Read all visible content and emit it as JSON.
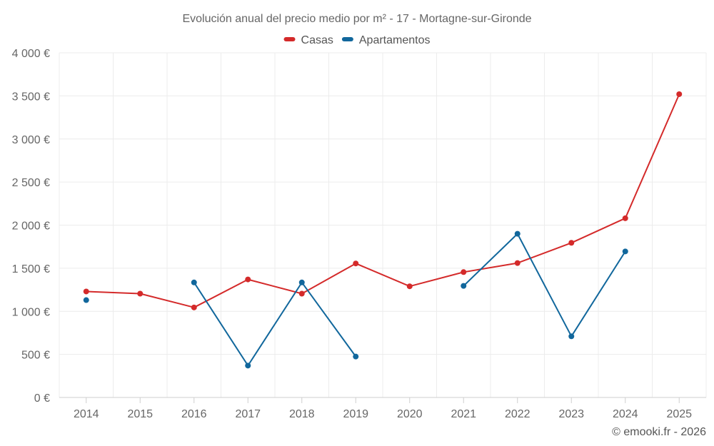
{
  "chart_data": {
    "type": "line",
    "title": "Evolución anual del precio medio por m² - 17 - Mortagne-sur-Gironde",
    "categories": [
      "2014",
      "2015",
      "2016",
      "2017",
      "2018",
      "2019",
      "2020",
      "2021",
      "2022",
      "2023",
      "2024",
      "2025"
    ],
    "ylim": [
      0,
      4000
    ],
    "yticks": [
      0,
      500,
      1000,
      1500,
      2000,
      2500,
      3000,
      3500,
      4000
    ],
    "ytick_labels": [
      "0 €",
      "500 €",
      "1 000 €",
      "1 500 €",
      "2 000 €",
      "2 500 €",
      "3 000 €",
      "3 500 €",
      "4 000 €"
    ],
    "legend_position": "top-center",
    "grid": true,
    "series": [
      {
        "name": "Casas",
        "color": "#d42a2a",
        "values": [
          1230,
          1205,
          1045,
          1370,
          1205,
          1555,
          1290,
          1455,
          1560,
          1795,
          2080,
          3520
        ]
      },
      {
        "name": "Apartamentos",
        "color": "#11679c",
        "values": [
          1130,
          null,
          1335,
          370,
          1335,
          475,
          null,
          1295,
          1900,
          710,
          1695,
          null
        ]
      }
    ]
  },
  "credit": "© emooki.fr - 2026"
}
